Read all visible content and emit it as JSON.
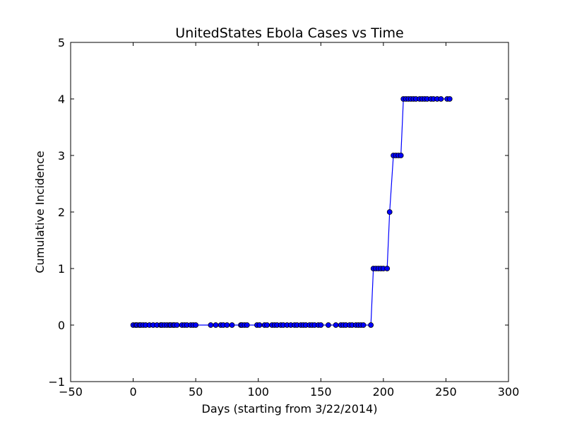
{
  "chart_data": {
    "type": "line",
    "title": "UnitedStates Ebola Cases vs Time",
    "xlabel": "Days (starting from 3/22/2014)",
    "ylabel": "Cumulative Incidence",
    "xlim": [
      -50,
      300
    ],
    "ylim": [
      -1,
      5
    ],
    "xticks": [
      -50,
      0,
      50,
      100,
      150,
      200,
      250,
      300
    ],
    "yticks": [
      -1,
      0,
      1,
      2,
      3,
      4,
      5
    ],
    "xtick_labels": [
      "−50",
      "0",
      "50",
      "100",
      "150",
      "200",
      "250",
      "300"
    ],
    "ytick_labels": [
      "−1",
      "0",
      "1",
      "2",
      "3",
      "4",
      "5"
    ],
    "grid": false,
    "series": [
      {
        "color": "#0000ff",
        "marker": "circle",
        "x": [
          0,
          2,
          3,
          5,
          6,
          8,
          10,
          13,
          16,
          19,
          22,
          23,
          25,
          27,
          29,
          30,
          32,
          33,
          35,
          39,
          41,
          43,
          46,
          48,
          50,
          62,
          66,
          70,
          72,
          75,
          79,
          86,
          87,
          89,
          91,
          99,
          101,
          105,
          107,
          111,
          113,
          115,
          118,
          120,
          123,
          126,
          129,
          131,
          134,
          136,
          138,
          141,
          143,
          145,
          148,
          150,
          156,
          162,
          166,
          168,
          170,
          173,
          175,
          178,
          180,
          182,
          184,
          190,
          192,
          194,
          196,
          198,
          200,
          203,
          205,
          208,
          210,
          212,
          214,
          216,
          218,
          220,
          222,
          224,
          226,
          229,
          231,
          233,
          235,
          238,
          240,
          243,
          246,
          251,
          253
        ],
        "y": [
          0,
          0,
          0,
          0,
          0,
          0,
          0,
          0,
          0,
          0,
          0,
          0,
          0,
          0,
          0,
          0,
          0,
          0,
          0,
          0,
          0,
          0,
          0,
          0,
          0,
          0,
          0,
          0,
          0,
          0,
          0,
          0,
          0,
          0,
          0,
          0,
          0,
          0,
          0,
          0,
          0,
          0,
          0,
          0,
          0,
          0,
          0,
          0,
          0,
          0,
          0,
          0,
          0,
          0,
          0,
          0,
          0,
          0,
          0,
          0,
          0,
          0,
          0,
          0,
          0,
          0,
          0,
          0,
          1,
          1,
          1,
          1,
          1,
          1,
          2,
          3,
          3,
          3,
          3,
          4,
          4,
          4,
          4,
          4,
          4,
          4,
          4,
          4,
          4,
          4,
          4,
          4,
          4,
          4,
          4
        ]
      }
    ]
  }
}
